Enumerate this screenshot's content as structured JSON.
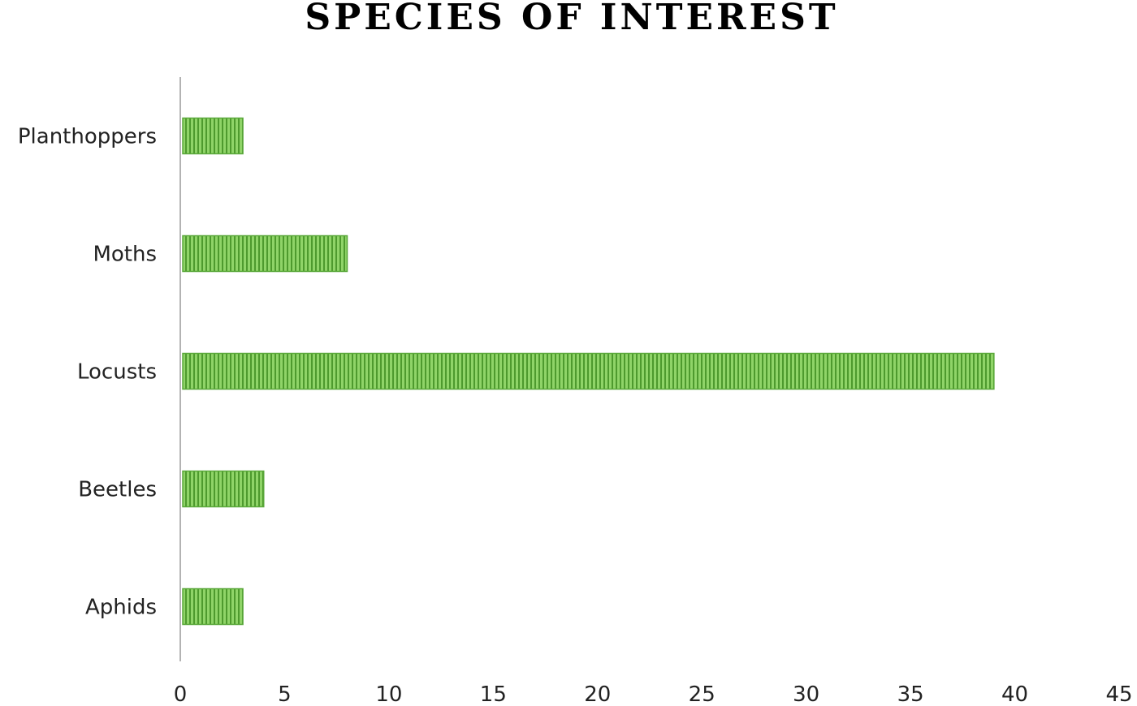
{
  "chart_data": {
    "type": "bar",
    "orientation": "horizontal",
    "title": "SPECIES OF INTEREST",
    "categories": [
      "Planthoppers",
      "Moths",
      "Locusts",
      "Beetles",
      "Aphids"
    ],
    "values": [
      3,
      8,
      39,
      4,
      3
    ],
    "xlim": [
      0,
      45
    ],
    "xticks": [
      0,
      5,
      10,
      15,
      20,
      25,
      30,
      35,
      40,
      45
    ],
    "grid": false,
    "legend": "none",
    "colors": {
      "bar_fill": "#8fd468",
      "bar_stripe": "#4e9a2e",
      "bar_border": "#5aa83a",
      "axis": "#b3b3b3",
      "text": "#222222"
    }
  }
}
